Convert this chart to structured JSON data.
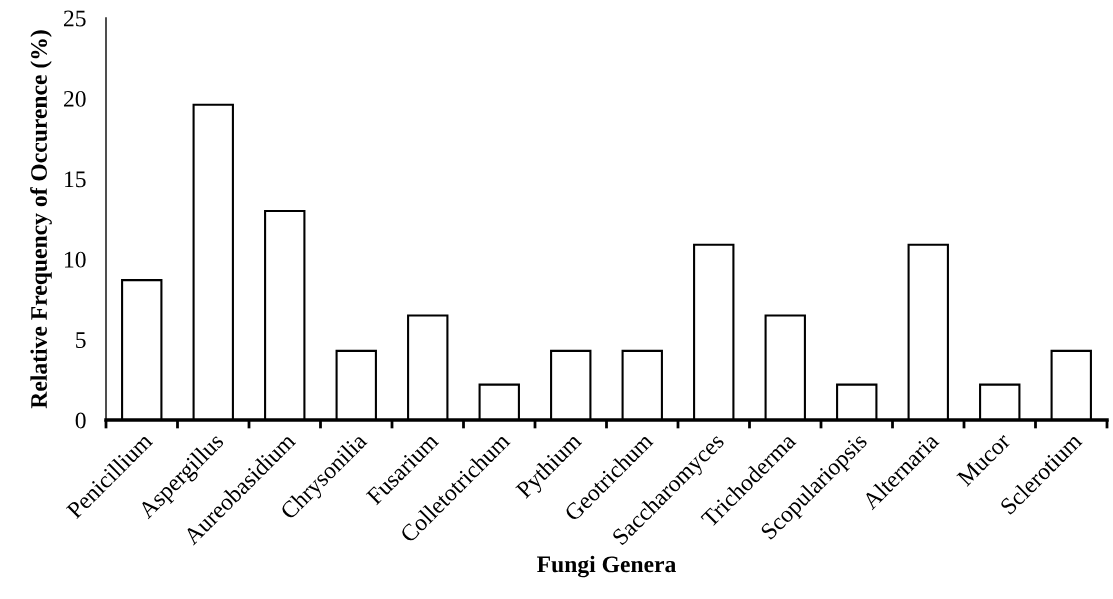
{
  "chart_data": {
    "type": "bar",
    "xlabel": "Fungi Genera",
    "ylabel": "Relative Frequency of Occurence (%)",
    "categories": [
      "Penicillium",
      "Aspergillus",
      "Aureobasidium",
      "Chrysonilia",
      "Fusarium",
      "Colletotrichum",
      "Pythium",
      "Geotrichum",
      "Saccharomyces",
      "Trichoderma",
      "Scopulariopsis",
      "Alternaria",
      "Mucor",
      "Sclerotium"
    ],
    "values": [
      8.7,
      19.6,
      13.0,
      4.3,
      6.5,
      2.2,
      4.3,
      4.3,
      10.9,
      6.5,
      2.2,
      10.9,
      2.2,
      4.3
    ],
    "color": "#ffffff",
    "ylim": [
      0,
      25
    ],
    "yticks": [
      0,
      5,
      10,
      15,
      20,
      25
    ],
    "grid": false,
    "legend": false
  }
}
